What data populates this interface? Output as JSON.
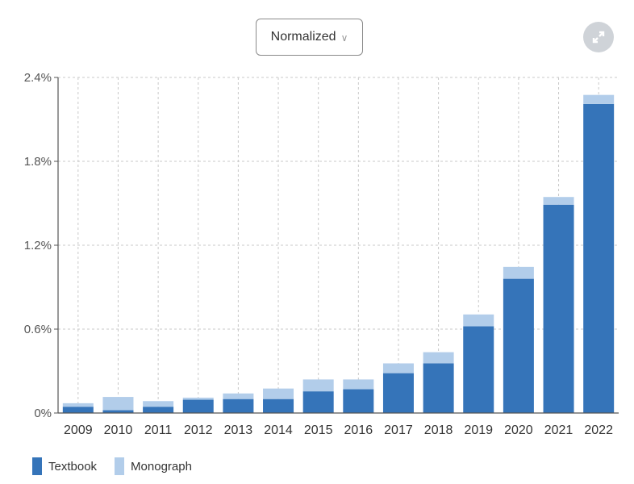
{
  "controls": {
    "mode_label": "Normalized",
    "expand_icon": "expand-icon"
  },
  "colors": {
    "textbook": "#3574b9",
    "monograph": "#b2cdea",
    "grid": "#c9c9c9",
    "axis": "#555555"
  },
  "chart_data": {
    "type": "bar",
    "stacked": true,
    "categories": [
      "2009",
      "2010",
      "2011",
      "2012",
      "2013",
      "2014",
      "2015",
      "2016",
      "2017",
      "2018",
      "2019",
      "2020",
      "2021",
      "2022"
    ],
    "series": [
      {
        "name": "Textbook",
        "values": [
          0.045,
          0.02,
          0.045,
          0.095,
          0.1,
          0.1,
          0.155,
          0.17,
          0.285,
          0.355,
          0.62,
          0.96,
          1.49,
          2.21
        ]
      },
      {
        "name": "Monograph",
        "values": [
          0.025,
          0.095,
          0.04,
          0.015,
          0.04,
          0.075,
          0.085,
          0.07,
          0.07,
          0.08,
          0.085,
          0.085,
          0.055,
          0.065
        ]
      }
    ],
    "y_ticks": [
      "0%",
      "0.6%",
      "1.2%",
      "1.8%",
      "2.4%"
    ],
    "ylim": [
      0,
      2.4
    ],
    "grid": true,
    "legend_position": "bottom-left"
  }
}
